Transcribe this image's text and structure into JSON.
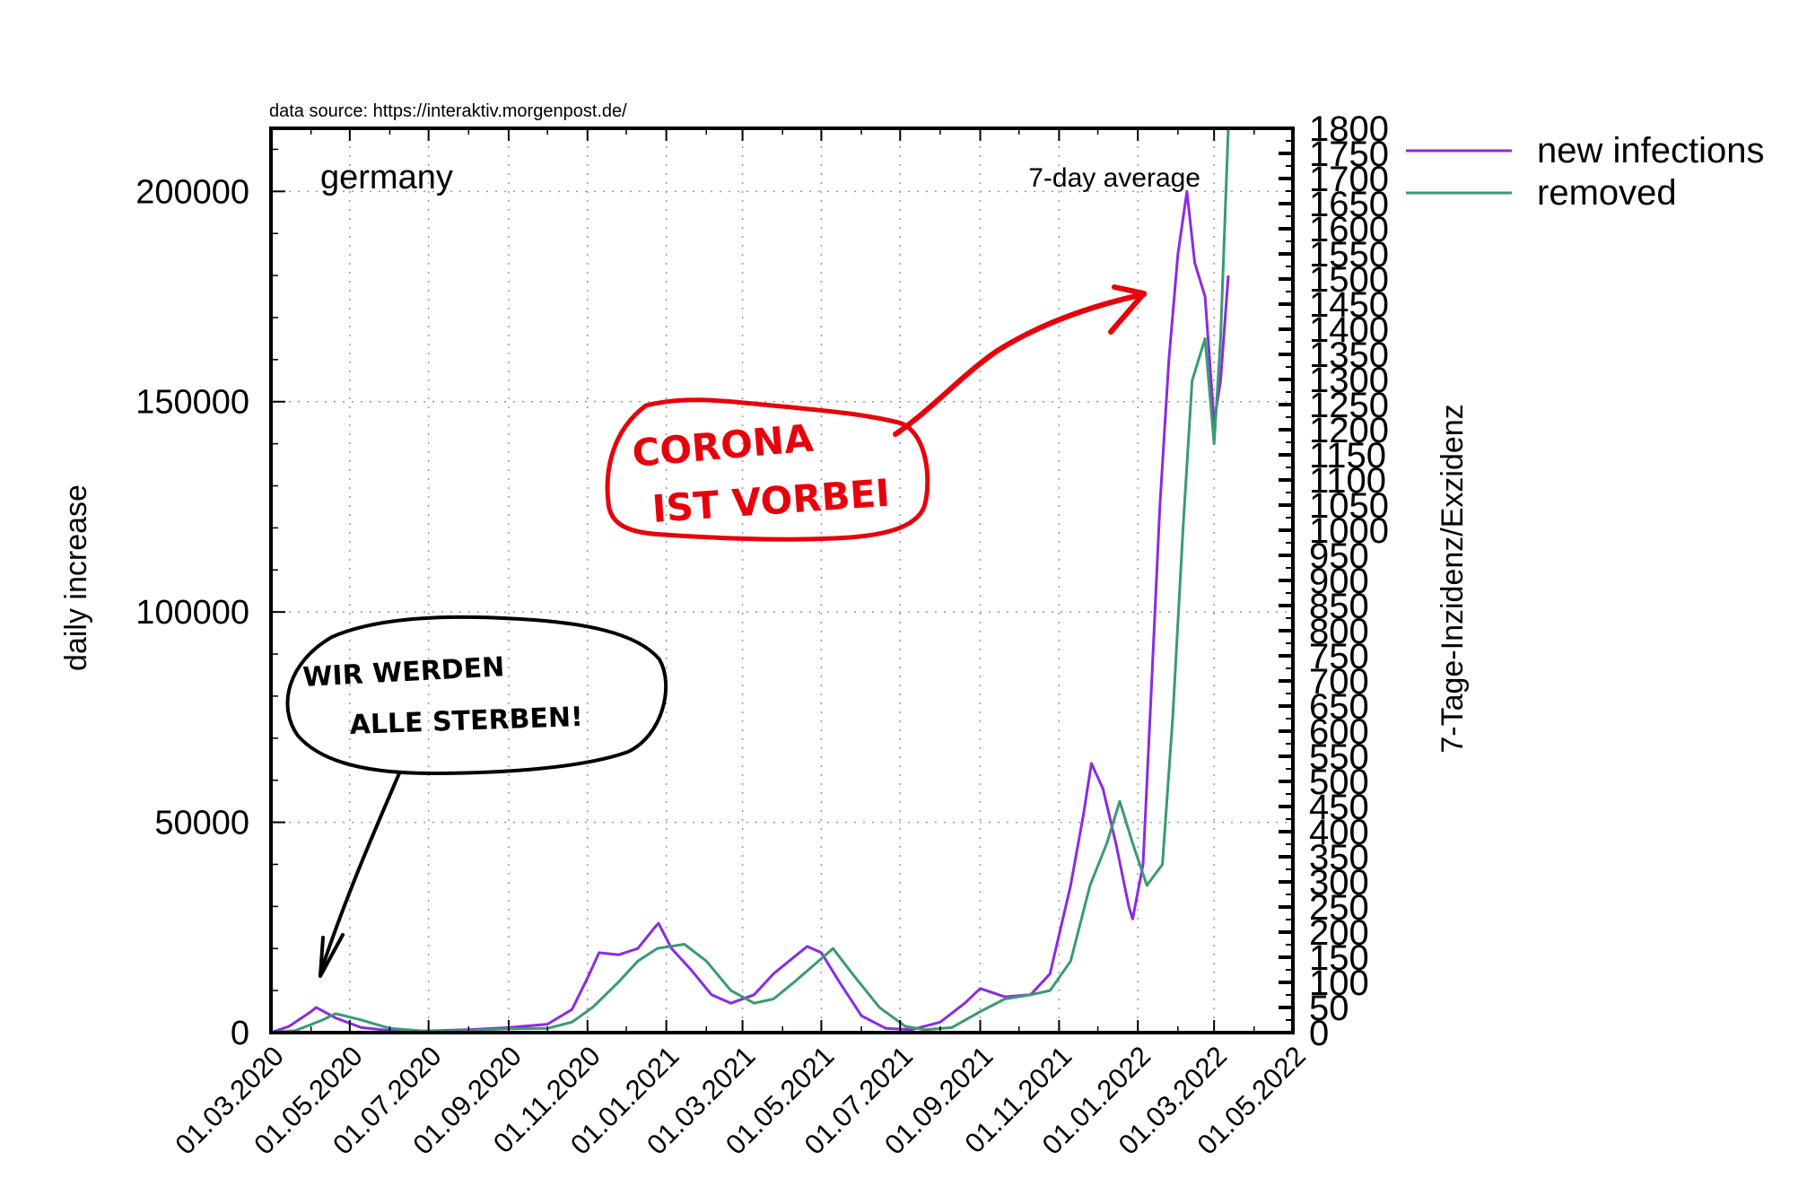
{
  "source_note": "data source: https://interaktiv.morgenpost.de/",
  "chart_data": {
    "type": "line",
    "region_label": "germany",
    "smoothing_label": "7-day average",
    "ylabel": "daily increase",
    "y2label": "7-Tage-Inzidenz/Exzidenz",
    "ylim": [
      0,
      215000
    ],
    "y2lim": [
      0,
      1800
    ],
    "yticks": [
      "0",
      "50000",
      "100000",
      "150000",
      "200000"
    ],
    "y2ticks": [
      "0",
      "50",
      "100",
      "150",
      "200",
      "250",
      "300",
      "350",
      "400",
      "450",
      "500",
      "550",
      "600",
      "650",
      "700",
      "750",
      "800",
      "850",
      "900",
      "950",
      "1000",
      "1050",
      "1100",
      "1150",
      "1200",
      "1250",
      "1300",
      "1350",
      "1400",
      "1450",
      "1500",
      "1550",
      "1600",
      "1650",
      "1700",
      "1750",
      "1800"
    ],
    "xticks": [
      "01.03.2020",
      "01.05.2020",
      "01.07.2020",
      "01.09.2020",
      "01.11.2020",
      "01.01.2021",
      "01.03.2021",
      "01.05.2021",
      "01.07.2021",
      "01.09.2021",
      "01.11.2021",
      "01.01.2022",
      "01.03.2022",
      "01.05.2022"
    ],
    "grid": true,
    "legend_position": "right of plot, top",
    "colors": {
      "new_infections": "#8a2be2",
      "removed": "#3a9a72",
      "annotation_red": "#e8000b",
      "annotation_black": "#000000"
    },
    "series": [
      {
        "name": "new infections",
        "points": [
          [
            "2020-03-01",
            0
          ],
          [
            "2020-03-15",
            1500
          ],
          [
            "2020-04-01",
            5000
          ],
          [
            "2020-04-05",
            6000
          ],
          [
            "2020-04-20",
            3500
          ],
          [
            "2020-05-10",
            1200
          ],
          [
            "2020-06-01",
            500
          ],
          [
            "2020-07-01",
            400
          ],
          [
            "2020-08-01",
            700
          ],
          [
            "2020-09-01",
            1200
          ],
          [
            "2020-10-01",
            2000
          ],
          [
            "2020-10-20",
            5500
          ],
          [
            "2020-11-01",
            13000
          ],
          [
            "2020-11-10",
            19000
          ],
          [
            "2020-11-25",
            18500
          ],
          [
            "2020-12-10",
            20000
          ],
          [
            "2020-12-23",
            25000
          ],
          [
            "2020-12-26",
            26000
          ],
          [
            "2021-01-05",
            20000
          ],
          [
            "2021-01-20",
            15000
          ],
          [
            "2021-02-05",
            9000
          ],
          [
            "2021-02-20",
            7000
          ],
          [
            "2021-03-10",
            9000
          ],
          [
            "2021-03-25",
            14000
          ],
          [
            "2021-04-10",
            18000
          ],
          [
            "2021-04-20",
            20500
          ],
          [
            "2021-05-01",
            19000
          ],
          [
            "2021-05-15",
            12000
          ],
          [
            "2021-06-01",
            4000
          ],
          [
            "2021-06-20",
            1000
          ],
          [
            "2021-07-10",
            700
          ],
          [
            "2021-08-01",
            2500
          ],
          [
            "2021-08-20",
            7000
          ],
          [
            "2021-09-01",
            10500
          ],
          [
            "2021-09-20",
            8500
          ],
          [
            "2021-10-10",
            9000
          ],
          [
            "2021-10-25",
            14000
          ],
          [
            "2021-11-10",
            35000
          ],
          [
            "2021-11-20",
            52000
          ],
          [
            "2021-11-26",
            64000
          ],
          [
            "2021-12-05",
            58000
          ],
          [
            "2021-12-15",
            45000
          ],
          [
            "2021-12-25",
            30000
          ],
          [
            "2021-12-28",
            27000
          ],
          [
            "2022-01-05",
            40000
          ],
          [
            "2022-01-12",
            85000
          ],
          [
            "2022-01-18",
            125000
          ],
          [
            "2022-01-25",
            160000
          ],
          [
            "2022-02-01",
            185000
          ],
          [
            "2022-02-08",
            200000
          ],
          [
            "2022-02-14",
            183000
          ],
          [
            "2022-02-22",
            175000
          ],
          [
            "2022-03-01",
            145000
          ],
          [
            "2022-03-06",
            155000
          ],
          [
            "2022-03-12",
            180000
          ]
        ]
      },
      {
        "name": "removed",
        "points": [
          [
            "2020-03-01",
            0
          ],
          [
            "2020-03-20",
            500
          ],
          [
            "2020-04-10",
            3000
          ],
          [
            "2020-04-20",
            4500
          ],
          [
            "2020-05-10",
            3000
          ],
          [
            "2020-06-01",
            1000
          ],
          [
            "2020-07-01",
            300
          ],
          [
            "2020-08-01",
            500
          ],
          [
            "2020-09-01",
            900
          ],
          [
            "2020-10-01",
            1000
          ],
          [
            "2020-10-20",
            2500
          ],
          [
            "2020-11-05",
            6000
          ],
          [
            "2020-11-25",
            12000
          ],
          [
            "2020-12-10",
            17000
          ],
          [
            "2020-12-25",
            20000
          ],
          [
            "2021-01-15",
            21000
          ],
          [
            "2021-02-01",
            17000
          ],
          [
            "2021-02-20",
            10000
          ],
          [
            "2021-03-10",
            7000
          ],
          [
            "2021-03-25",
            8000
          ],
          [
            "2021-04-10",
            12000
          ],
          [
            "2021-04-25",
            16000
          ],
          [
            "2021-05-10",
            20000
          ],
          [
            "2021-05-25",
            14000
          ],
          [
            "2021-06-15",
            6000
          ],
          [
            "2021-07-05",
            1500
          ],
          [
            "2021-07-20",
            700
          ],
          [
            "2021-08-10",
            1200
          ],
          [
            "2021-09-01",
            5000
          ],
          [
            "2021-09-20",
            8000
          ],
          [
            "2021-10-10",
            9000
          ],
          [
            "2021-10-25",
            10000
          ],
          [
            "2021-11-10",
            17000
          ],
          [
            "2021-11-25",
            35000
          ],
          [
            "2021-12-08",
            45000
          ],
          [
            "2021-12-18",
            55000
          ],
          [
            "2021-12-28",
            45000
          ],
          [
            "2022-01-08",
            35000
          ],
          [
            "2022-01-20",
            40000
          ],
          [
            "2022-01-28",
            75000
          ],
          [
            "2022-02-05",
            120000
          ],
          [
            "2022-02-12",
            155000
          ],
          [
            "2022-02-22",
            165000
          ],
          [
            "2022-03-01",
            140000
          ],
          [
            "2022-03-06",
            165000
          ],
          [
            "2022-03-12",
            215000
          ]
        ]
      }
    ],
    "annotations": [
      {
        "text_lines": [
          "CORONA",
          "IST VORBEI"
        ],
        "style": "red hand-drawn speech bubble with arrow"
      },
      {
        "text_lines": [
          "WIR WERDEN",
          "ALLE STERBEN!"
        ],
        "style": "black hand-drawn speech bubble with arrow"
      }
    ]
  }
}
